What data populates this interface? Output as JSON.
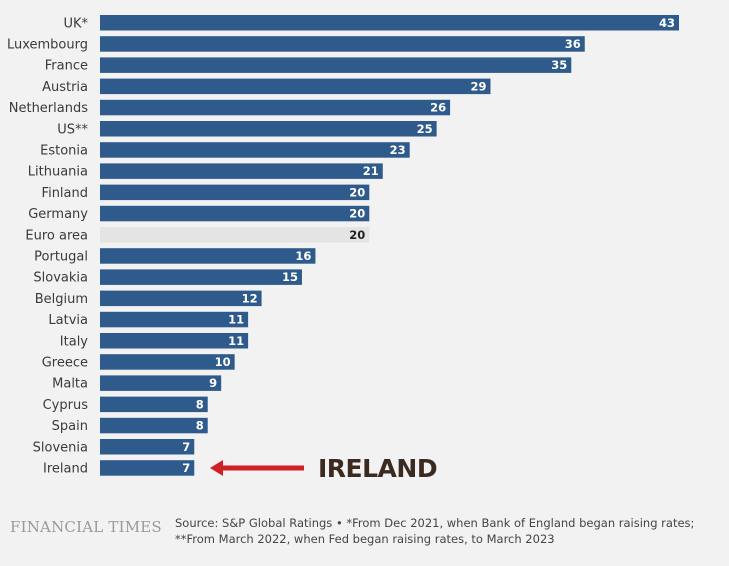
{
  "chart_data": {
    "type": "bar",
    "orientation": "horizontal",
    "categories": [
      "UK*",
      "Luxembourg",
      "France",
      "Austria",
      "Netherlands",
      "US**",
      "Estonia",
      "Lithuania",
      "Finland",
      "Germany",
      "Euro area",
      "Portugal",
      "Slovakia",
      "Belgium",
      "Latvia",
      "Italy",
      "Greece",
      "Malta",
      "Cyprus",
      "Spain",
      "Slovenia",
      "Ireland"
    ],
    "values": [
      43,
      36,
      35,
      29,
      26,
      25,
      23,
      21,
      20,
      20,
      20,
      16,
      15,
      12,
      11,
      11,
      10,
      9,
      8,
      8,
      7,
      7
    ],
    "highlight": "Euro area",
    "xlim": [
      0,
      43
    ],
    "grid": false,
    "legend": "none",
    "colors": {
      "bar": "#2e5a8c",
      "highlight_bar": "#e4e4e4",
      "bar_text": "#ffffff",
      "highlight_text": "#222222"
    },
    "annotation": {
      "text": "IRELAND",
      "target": "Ireland",
      "arrow_color": "#d01f26"
    }
  },
  "footer": {
    "brand": "FINANCIAL TIMES",
    "source": "Source: S&P Global Ratings • *From Dec 2021, when Bank of England began raising rates; **From March 2022, when Fed began raising rates, to March 2023"
  }
}
